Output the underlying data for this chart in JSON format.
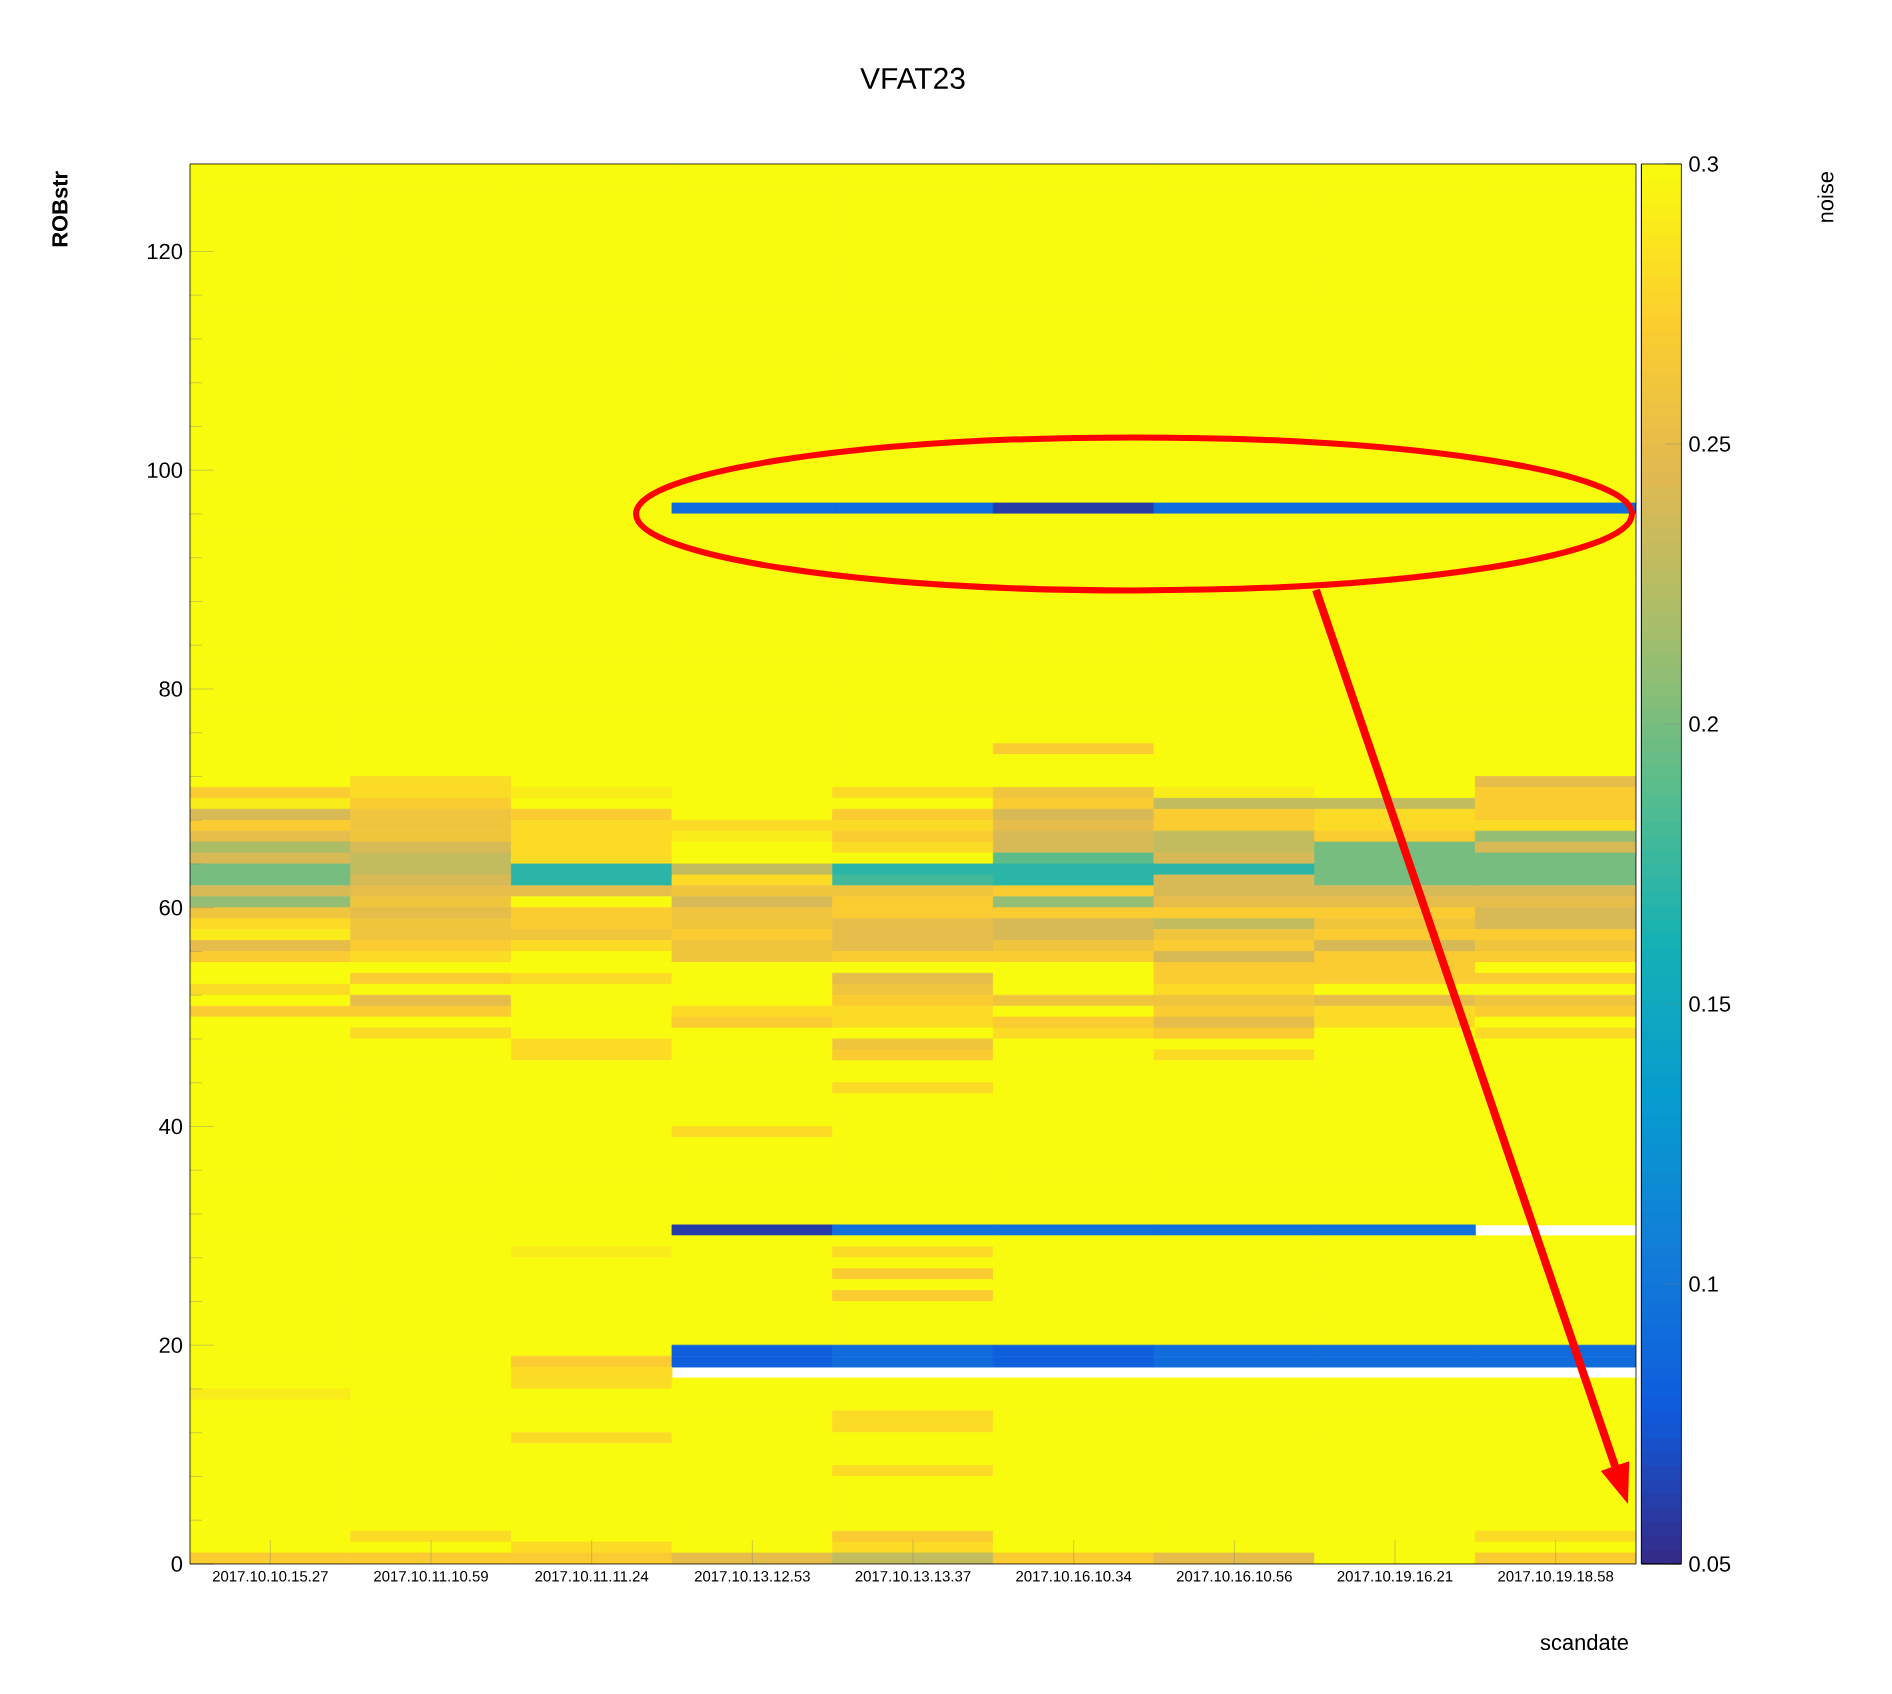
{
  "chart_data": {
    "type": "heatmap",
    "title": "VFAT23",
    "xlabel": "scandate",
    "ylabel": "ROBstr",
    "clabel": "noise",
    "categories": [
      "2017.10.10.15.27",
      "2017.10.11.10.59",
      "2017.10.11.11.24",
      "2017.10.13.12.53",
      "2017.10.13.13.37",
      "2017.10.16.10.34",
      "2017.10.16.10.56",
      "2017.10.19.16.21",
      "2017.10.19.18.58"
    ],
    "ylim": [
      0,
      128
    ],
    "yticks": [
      0,
      20,
      40,
      60,
      80,
      100,
      120
    ],
    "clim": [
      0.05,
      0.3
    ],
    "cticks": [
      0.05,
      0.1,
      0.15,
      0.2,
      0.25,
      0.3
    ],
    "cells": [
      [
        0.3,
        0.3,
        0.3,
        0.3,
        0.3,
        0.3,
        0.3,
        0.3,
        0.3
      ],
      [
        0.3,
        0.3,
        0.3,
        0.3,
        0.3,
        0.3,
        0.3,
        0.3,
        0.3
      ],
      [
        0.3,
        0.3,
        0.3,
        0.3,
        0.3,
        0.3,
        0.3,
        0.3,
        0.3
      ],
      [
        0.3,
        0.3,
        0.3,
        0.3,
        0.3,
        0.3,
        0.3,
        0.3,
        0.3
      ],
      [
        0.3,
        0.3,
        0.3,
        0.3,
        0.3,
        0.3,
        0.3,
        0.3,
        0.3
      ],
      [
        0.3,
        0.3,
        0.3,
        0.3,
        0.3,
        0.3,
        0.3,
        0.3,
        0.3
      ],
      [
        0.3,
        0.3,
        0.3,
        0.3,
        0.3,
        0.3,
        0.3,
        0.3,
        0.3
      ],
      [
        0.3,
        0.3,
        0.3,
        0.3,
        0.3,
        0.3,
        0.3,
        0.3,
        0.3
      ],
      [
        0.3,
        0.3,
        0.3,
        0.3,
        0.3,
        0.3,
        0.3,
        0.3,
        0.3
      ],
      [
        0.3,
        0.3,
        0.3,
        0.3,
        0.3,
        0.3,
        0.3,
        0.3,
        0.3
      ],
      [
        0.3,
        0.3,
        0.3,
        0.3,
        0.3,
        0.3,
        0.3,
        0.3,
        0.3
      ],
      [
        0.3,
        0.3,
        0.3,
        0.3,
        0.3,
        0.3,
        0.3,
        0.3,
        0.3
      ],
      [
        0.3,
        0.3,
        0.3,
        0.3,
        0.3,
        0.3,
        0.3,
        0.3,
        0.3
      ],
      [
        0.3,
        0.3,
        0.3,
        0.3,
        0.3,
        0.3,
        0.3,
        0.3,
        0.3
      ],
      [
        0.3,
        0.3,
        0.3,
        0.3,
        0.3,
        0.3,
        0.3,
        0.3,
        0.3
      ],
      [
        0.3,
        0.3,
        0.3,
        0.3,
        0.3,
        0.3,
        0.3,
        0.3,
        0.3
      ],
      [
        0.3,
        0.3,
        0.3,
        0.3,
        0.3,
        0.3,
        0.3,
        0.3,
        0.3
      ],
      [
        0.3,
        0.3,
        0.3,
        0.3,
        0.3,
        0.3,
        0.3,
        0.3,
        0.3
      ],
      [
        0.3,
        0.3,
        0.3,
        0.3,
        0.3,
        0.3,
        0.3,
        0.3,
        0.3
      ],
      [
        0.3,
        0.3,
        0.3,
        0.3,
        0.3,
        0.3,
        0.3,
        0.3,
        0.3
      ],
      [
        0.3,
        0.3,
        0.3,
        0.3,
        0.3,
        0.3,
        0.3,
        0.3,
        0.3
      ],
      [
        0.3,
        0.3,
        0.3,
        0.3,
        0.3,
        0.3,
        0.3,
        0.3,
        0.3
      ],
      [
        0.3,
        0.3,
        0.3,
        0.3,
        0.3,
        0.3,
        0.3,
        0.3,
        0.3
      ],
      [
        0.3,
        0.3,
        0.3,
        0.3,
        0.3,
        0.3,
        0.3,
        0.3,
        0.3
      ],
      [
        0.3,
        0.3,
        0.3,
        0.3,
        0.3,
        0.3,
        0.3,
        0.3,
        0.3
      ],
      [
        0.3,
        0.3,
        0.3,
        0.3,
        0.3,
        0.3,
        0.3,
        0.3,
        0.3
      ],
      [
        0.3,
        0.3,
        0.3,
        0.3,
        0.3,
        0.3,
        0.3,
        0.3,
        0.3
      ],
      [
        0.3,
        0.3,
        0.3,
        0.3,
        0.3,
        0.3,
        0.3,
        0.3,
        0.3
      ],
      [
        0.3,
        0.3,
        0.3,
        0.3,
        0.3,
        0.3,
        0.3,
        0.3,
        0.3
      ],
      [
        0.3,
        0.3,
        0.3,
        0.3,
        0.3,
        0.3,
        0.3,
        0.3,
        0.3
      ],
      [
        0.3,
        0.3,
        0.3,
        0.3,
        0.3,
        0.3,
        0.3,
        0.3,
        0.3
      ],
      [
        0.3,
        0.3,
        0.3,
        0.09,
        0.09,
        0.06,
        0.09,
        0.09,
        0.09
      ],
      [
        0.3,
        0.3,
        0.3,
        0.3,
        0.3,
        0.3,
        0.3,
        0.3,
        0.3
      ],
      [
        0.3,
        0.3,
        0.3,
        0.3,
        0.3,
        0.3,
        0.3,
        0.3,
        0.3
      ],
      [
        0.3,
        0.3,
        0.3,
        0.3,
        0.3,
        0.3,
        0.3,
        0.3,
        0.3
      ],
      [
        0.3,
        0.3,
        0.3,
        0.3,
        0.3,
        0.3,
        0.3,
        0.3,
        0.3
      ],
      [
        0.3,
        0.3,
        0.3,
        0.3,
        0.3,
        0.3,
        0.3,
        0.3,
        0.3
      ],
      [
        0.3,
        0.3,
        0.3,
        0.3,
        0.3,
        0.3,
        0.3,
        0.3,
        0.3
      ],
      [
        0.3,
        0.3,
        0.3,
        0.3,
        0.3,
        0.3,
        0.3,
        0.3,
        0.3
      ],
      [
        0.3,
        0.3,
        0.3,
        0.3,
        0.3,
        0.3,
        0.3,
        0.3,
        0.3
      ],
      [
        0.3,
        0.3,
        0.3,
        0.3,
        0.3,
        0.3,
        0.3,
        0.3,
        0.3
      ],
      [
        0.3,
        0.3,
        0.3,
        0.3,
        0.3,
        0.3,
        0.3,
        0.3,
        0.3
      ],
      [
        0.3,
        0.3,
        0.3,
        0.3,
        0.3,
        0.3,
        0.3,
        0.3,
        0.3
      ],
      [
        0.3,
        0.3,
        0.3,
        0.3,
        0.3,
        0.3,
        0.3,
        0.3,
        0.3
      ],
      [
        0.3,
        0.3,
        0.3,
        0.3,
        0.3,
        0.3,
        0.3,
        0.3,
        0.3
      ],
      [
        0.3,
        0.3,
        0.3,
        0.3,
        0.3,
        0.3,
        0.3,
        0.3,
        0.3
      ],
      [
        0.3,
        0.3,
        0.3,
        0.3,
        0.3,
        0.3,
        0.3,
        0.3,
        0.3
      ],
      [
        0.3,
        0.3,
        0.3,
        0.3,
        0.3,
        0.3,
        0.3,
        0.3,
        0.3
      ],
      [
        0.3,
        0.3,
        0.3,
        0.3,
        0.3,
        0.3,
        0.3,
        0.3,
        0.3
      ],
      [
        0.3,
        0.3,
        0.3,
        0.3,
        0.3,
        0.3,
        0.3,
        0.3,
        0.3
      ],
      [
        0.3,
        0.3,
        0.3,
        0.3,
        0.3,
        0.3,
        0.3,
        0.3,
        0.3
      ],
      [
        0.3,
        0.3,
        0.3,
        0.3,
        0.3,
        0.3,
        0.3,
        0.3,
        0.3
      ],
      [
        0.3,
        0.3,
        0.3,
        0.3,
        0.3,
        0.3,
        0.3,
        0.3,
        0.3
      ],
      [
        0.3,
        0.3,
        0.3,
        0.3,
        0.3,
        0.27,
        0.3,
        0.3,
        0.3
      ],
      [
        0.3,
        0.3,
        0.3,
        0.3,
        0.3,
        0.3,
        0.3,
        0.3,
        0.3
      ],
      [
        0.3,
        0.3,
        0.3,
        0.3,
        0.3,
        0.3,
        0.3,
        0.3,
        0.3
      ],
      [
        0.3,
        0.28,
        0.3,
        0.3,
        0.3,
        0.3,
        0.3,
        0.3,
        0.25
      ],
      [
        0.27,
        0.28,
        0.29,
        0.3,
        0.28,
        0.26,
        0.29,
        0.3,
        0.27
      ],
      [
        0.29,
        0.27,
        0.3,
        0.3,
        0.3,
        0.27,
        0.23,
        0.23,
        0.27
      ],
      [
        0.24,
        0.26,
        0.27,
        0.3,
        0.27,
        0.24,
        0.27,
        0.28,
        0.27
      ],
      [
        0.27,
        0.26,
        0.28,
        0.28,
        0.28,
        0.25,
        0.27,
        0.28,
        0.28
      ],
      [
        0.25,
        0.26,
        0.28,
        0.29,
        0.27,
        0.24,
        0.23,
        0.27,
        0.21
      ],
      [
        0.22,
        0.24,
        0.28,
        0.3,
        0.28,
        0.24,
        0.23,
        0.2,
        0.24
      ],
      [
        0.24,
        0.23,
        0.28,
        0.3,
        0.3,
        0.19,
        0.24,
        0.2,
        0.2
      ],
      [
        0.2,
        0.23,
        0.17,
        0.23,
        0.17,
        0.17,
        0.17,
        0.2,
        0.2
      ],
      [
        0.2,
        0.24,
        0.17,
        0.28,
        0.18,
        0.17,
        0.24,
        0.2,
        0.2
      ],
      [
        0.24,
        0.25,
        0.25,
        0.26,
        0.26,
        0.27,
        0.24,
        0.24,
        0.24
      ],
      [
        0.21,
        0.26,
        0.3,
        0.24,
        0.27,
        0.21,
        0.25,
        0.25,
        0.25
      ],
      [
        0.26,
        0.25,
        0.27,
        0.26,
        0.27,
        0.27,
        0.27,
        0.27,
        0.24
      ],
      [
        0.28,
        0.26,
        0.27,
        0.26,
        0.25,
        0.24,
        0.23,
        0.26,
        0.24
      ],
      [
        0.29,
        0.26,
        0.26,
        0.27,
        0.25,
        0.24,
        0.26,
        0.27,
        0.27
      ],
      [
        0.25,
        0.27,
        0.28,
        0.26,
        0.25,
        0.26,
        0.27,
        0.24,
        0.26
      ],
      [
        0.27,
        0.28,
        0.3,
        0.26,
        0.27,
        0.27,
        0.24,
        0.27,
        0.27
      ],
      [
        0.3,
        0.3,
        0.3,
        0.3,
        0.3,
        0.3,
        0.27,
        0.27,
        0.3
      ],
      [
        0.3,
        0.27,
        0.28,
        0.3,
        0.25,
        0.3,
        0.27,
        0.27,
        0.27
      ],
      [
        0.28,
        0.3,
        0.3,
        0.3,
        0.26,
        0.3,
        0.28,
        0.3,
        0.3
      ],
      [
        0.3,
        0.25,
        0.3,
        0.3,
        0.27,
        0.26,
        0.26,
        0.25,
        0.26
      ],
      [
        0.27,
        0.27,
        0.3,
        0.28,
        0.28,
        0.3,
        0.27,
        0.28,
        0.27
      ],
      [
        0.3,
        0.3,
        0.3,
        0.27,
        0.28,
        0.27,
        0.25,
        0.28,
        0.3
      ],
      [
        0.3,
        0.28,
        0.3,
        0.3,
        0.3,
        0.28,
        0.27,
        0.3,
        0.28
      ],
      [
        0.3,
        0.3,
        0.28,
        0.3,
        0.26,
        0.3,
        0.3,
        0.3,
        0.3
      ],
      [
        0.3,
        0.3,
        0.28,
        0.3,
        0.27,
        0.3,
        0.28,
        0.3,
        0.3
      ],
      [
        0.3,
        0.3,
        0.3,
        0.3,
        0.3,
        0.3,
        0.3,
        0.3,
        0.3
      ],
      [
        0.3,
        0.3,
        0.3,
        0.3,
        0.3,
        0.3,
        0.3,
        0.3,
        0.3
      ],
      [
        0.3,
        0.3,
        0.3,
        0.3,
        0.28,
        0.3,
        0.3,
        0.3,
        0.3
      ],
      [
        0.3,
        0.3,
        0.3,
        0.3,
        0.3,
        0.3,
        0.3,
        0.3,
        0.3
      ],
      [
        0.3,
        0.3,
        0.3,
        0.3,
        0.3,
        0.3,
        0.3,
        0.3,
        0.3
      ],
      [
        0.3,
        0.3,
        0.3,
        0.3,
        0.3,
        0.3,
        0.3,
        0.3,
        0.3
      ],
      [
        0.3,
        0.3,
        0.3,
        0.28,
        0.3,
        0.3,
        0.3,
        0.3,
        0.3
      ],
      [
        0.3,
        0.3,
        0.3,
        0.3,
        0.3,
        0.3,
        0.3,
        0.3,
        0.3
      ],
      [
        0.3,
        0.3,
        0.3,
        0.3,
        0.3,
        0.3,
        0.3,
        0.3,
        0.3
      ],
      [
        0.3,
        0.3,
        0.3,
        0.3,
        0.3,
        0.3,
        0.3,
        0.3,
        0.3
      ],
      [
        0.3,
        0.3,
        0.3,
        0.3,
        0.3,
        0.3,
        0.3,
        0.3,
        0.3
      ],
      [
        0.3,
        0.3,
        0.3,
        0.3,
        0.3,
        0.3,
        0.3,
        0.3,
        0.3
      ],
      [
        0.3,
        0.3,
        0.3,
        0.3,
        0.3,
        0.3,
        0.3,
        0.3,
        0.3
      ],
      [
        0.3,
        0.3,
        0.3,
        0.3,
        0.3,
        0.3,
        0.3,
        0.3,
        0.3
      ],
      [
        0.3,
        0.3,
        0.3,
        0.3,
        0.3,
        0.3,
        0.3,
        0.3,
        0.3
      ],
      [
        0.3,
        0.3,
        0.3,
        0.06,
        0.095,
        0.095,
        0.095,
        0.095,
        null
      ],
      [
        0.3,
        0.3,
        0.3,
        0.3,
        0.3,
        0.3,
        0.3,
        0.3,
        0.3
      ],
      [
        0.3,
        0.3,
        0.29,
        0.3,
        0.28,
        0.3,
        0.3,
        0.3,
        0.3
      ],
      [
        0.3,
        0.3,
        0.3,
        0.3,
        0.3,
        0.3,
        0.3,
        0.3,
        0.3
      ],
      [
        0.3,
        0.3,
        0.3,
        0.3,
        0.27,
        0.3,
        0.3,
        0.3,
        0.3
      ],
      [
        0.3,
        0.3,
        0.3,
        0.3,
        0.3,
        0.3,
        0.3,
        0.3,
        0.3
      ],
      [
        0.3,
        0.3,
        0.3,
        0.3,
        0.27,
        0.3,
        0.3,
        0.3,
        0.3
      ],
      [
        0.3,
        0.3,
        0.3,
        0.3,
        0.3,
        0.3,
        0.3,
        0.3,
        0.3
      ],
      [
        0.3,
        0.3,
        0.3,
        0.3,
        0.3,
        0.3,
        0.3,
        0.3,
        0.3
      ],
      [
        0.3,
        0.3,
        0.3,
        0.3,
        0.3,
        0.3,
        0.3,
        0.3,
        0.3
      ],
      [
        0.3,
        0.3,
        0.3,
        0.3,
        0.3,
        0.3,
        0.3,
        0.3,
        0.3
      ],
      [
        0.3,
        0.3,
        0.3,
        0.08,
        0.09,
        0.08,
        0.09,
        0.09,
        0.09
      ],
      [
        0.3,
        0.3,
        0.27,
        0.08,
        0.09,
        0.08,
        0.09,
        0.09,
        0.09
      ],
      [
        0.3,
        0.3,
        0.28,
        null,
        null,
        null,
        null,
        null,
        null
      ],
      [
        0.3,
        0.3,
        0.28,
        0.3,
        0.3,
        0.3,
        0.3,
        0.3,
        0.3
      ],
      [
        0.29,
        0.3,
        0.3,
        0.3,
        0.3,
        0.3,
        0.3,
        0.3,
        0.3
      ],
      [
        0.3,
        0.3,
        0.3,
        0.3,
        0.3,
        0.3,
        0.3,
        0.3,
        0.3
      ],
      [
        0.3,
        0.3,
        0.3,
        0.3,
        0.28,
        0.3,
        0.3,
        0.3,
        0.3
      ],
      [
        0.3,
        0.3,
        0.3,
        0.3,
        0.28,
        0.3,
        0.3,
        0.3,
        0.3
      ],
      [
        0.3,
        0.3,
        0.28,
        0.3,
        0.3,
        0.3,
        0.3,
        0.3,
        0.3
      ],
      [
        0.3,
        0.3,
        0.3,
        0.3,
        0.3,
        0.3,
        0.3,
        0.3,
        0.3
      ],
      [
        0.3,
        0.3,
        0.3,
        0.3,
        0.3,
        0.3,
        0.3,
        0.3,
        0.3
      ],
      [
        0.3,
        0.3,
        0.3,
        0.3,
        0.28,
        0.3,
        0.3,
        0.3,
        0.3
      ],
      [
        0.3,
        0.3,
        0.3,
        0.3,
        0.3,
        0.3,
        0.3,
        0.3,
        0.3
      ],
      [
        0.3,
        0.3,
        0.3,
        0.3,
        0.3,
        0.3,
        0.3,
        0.3,
        0.3
      ],
      [
        0.3,
        0.3,
        0.3,
        0.3,
        0.3,
        0.3,
        0.3,
        0.3,
        0.3
      ],
      [
        0.3,
        0.3,
        0.3,
        0.3,
        0.3,
        0.3,
        0.3,
        0.3,
        0.3
      ],
      [
        0.3,
        0.3,
        0.3,
        0.3,
        0.3,
        0.3,
        0.3,
        0.3,
        0.3
      ],
      [
        0.3,
        0.28,
        0.3,
        0.3,
        0.27,
        0.3,
        0.3,
        0.3,
        0.28
      ],
      [
        0.3,
        0.3,
        0.28,
        0.3,
        0.28,
        0.3,
        0.3,
        0.3,
        0.3
      ],
      [
        0.27,
        0.27,
        0.27,
        0.25,
        0.23,
        0.27,
        0.25,
        0.3,
        0.27
      ]
    ]
  }
}
